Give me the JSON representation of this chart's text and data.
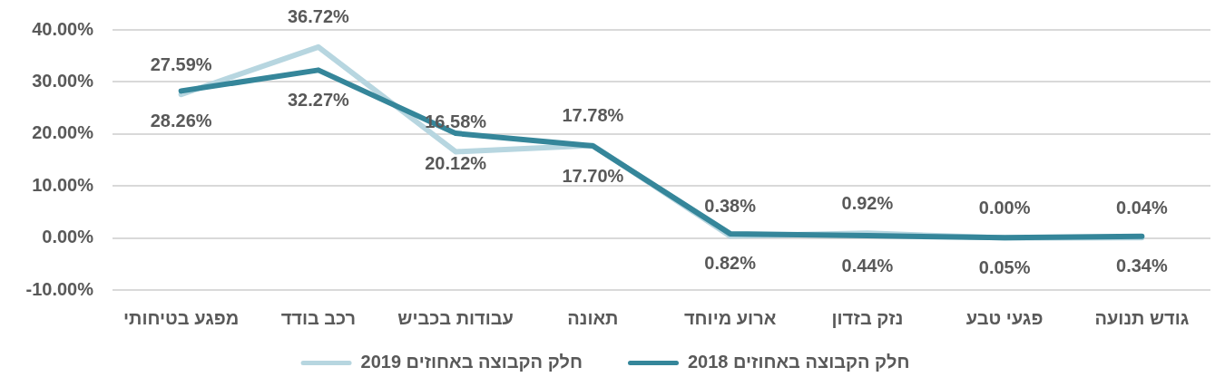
{
  "chart_data": {
    "type": "line",
    "categories": [
      "מפגע בטיחותי",
      "רכב בודד",
      "עבודות בכביש",
      "תאונה",
      "ארוע מיוחד",
      "נזק בזדון",
      "פגעי טבע",
      "גודש תנועה"
    ],
    "series": [
      {
        "name": "חלק הקבוצה באחוזים 2019",
        "color": "#b7d6e0",
        "values": [
          27.59,
          36.72,
          16.58,
          17.78,
          0.38,
          0.92,
          0.0,
          0.04
        ],
        "value_labels": [
          "27.59%",
          "36.72%",
          "16.58%",
          "17.78%",
          "0.38%",
          "0.92%",
          "0.00%",
          "0.04%"
        ]
      },
      {
        "name": "חלק הקבוצה באחוזים 2018",
        "color": "#35869a",
        "values": [
          28.26,
          32.27,
          20.12,
          17.7,
          0.82,
          0.44,
          0.05,
          0.34
        ],
        "value_labels": [
          "28.26%",
          "32.27%",
          "20.12%",
          "17.70%",
          "0.82%",
          "0.44%",
          "0.05%",
          "0.34%"
        ]
      }
    ],
    "ylim": [
      -10,
      40
    ],
    "yticks": [
      {
        "value": -10,
        "label": "-10.00%"
      },
      {
        "value": 0,
        "label": "0.00%"
      },
      {
        "value": 10,
        "label": "10.00%"
      },
      {
        "value": 20,
        "label": "20.00%"
      },
      {
        "value": 30,
        "label": "30.00%"
      },
      {
        "value": 40,
        "label": "40.00%"
      }
    ],
    "grid": "y",
    "legend": "bottom",
    "marker": "none",
    "line_style": "solid"
  }
}
